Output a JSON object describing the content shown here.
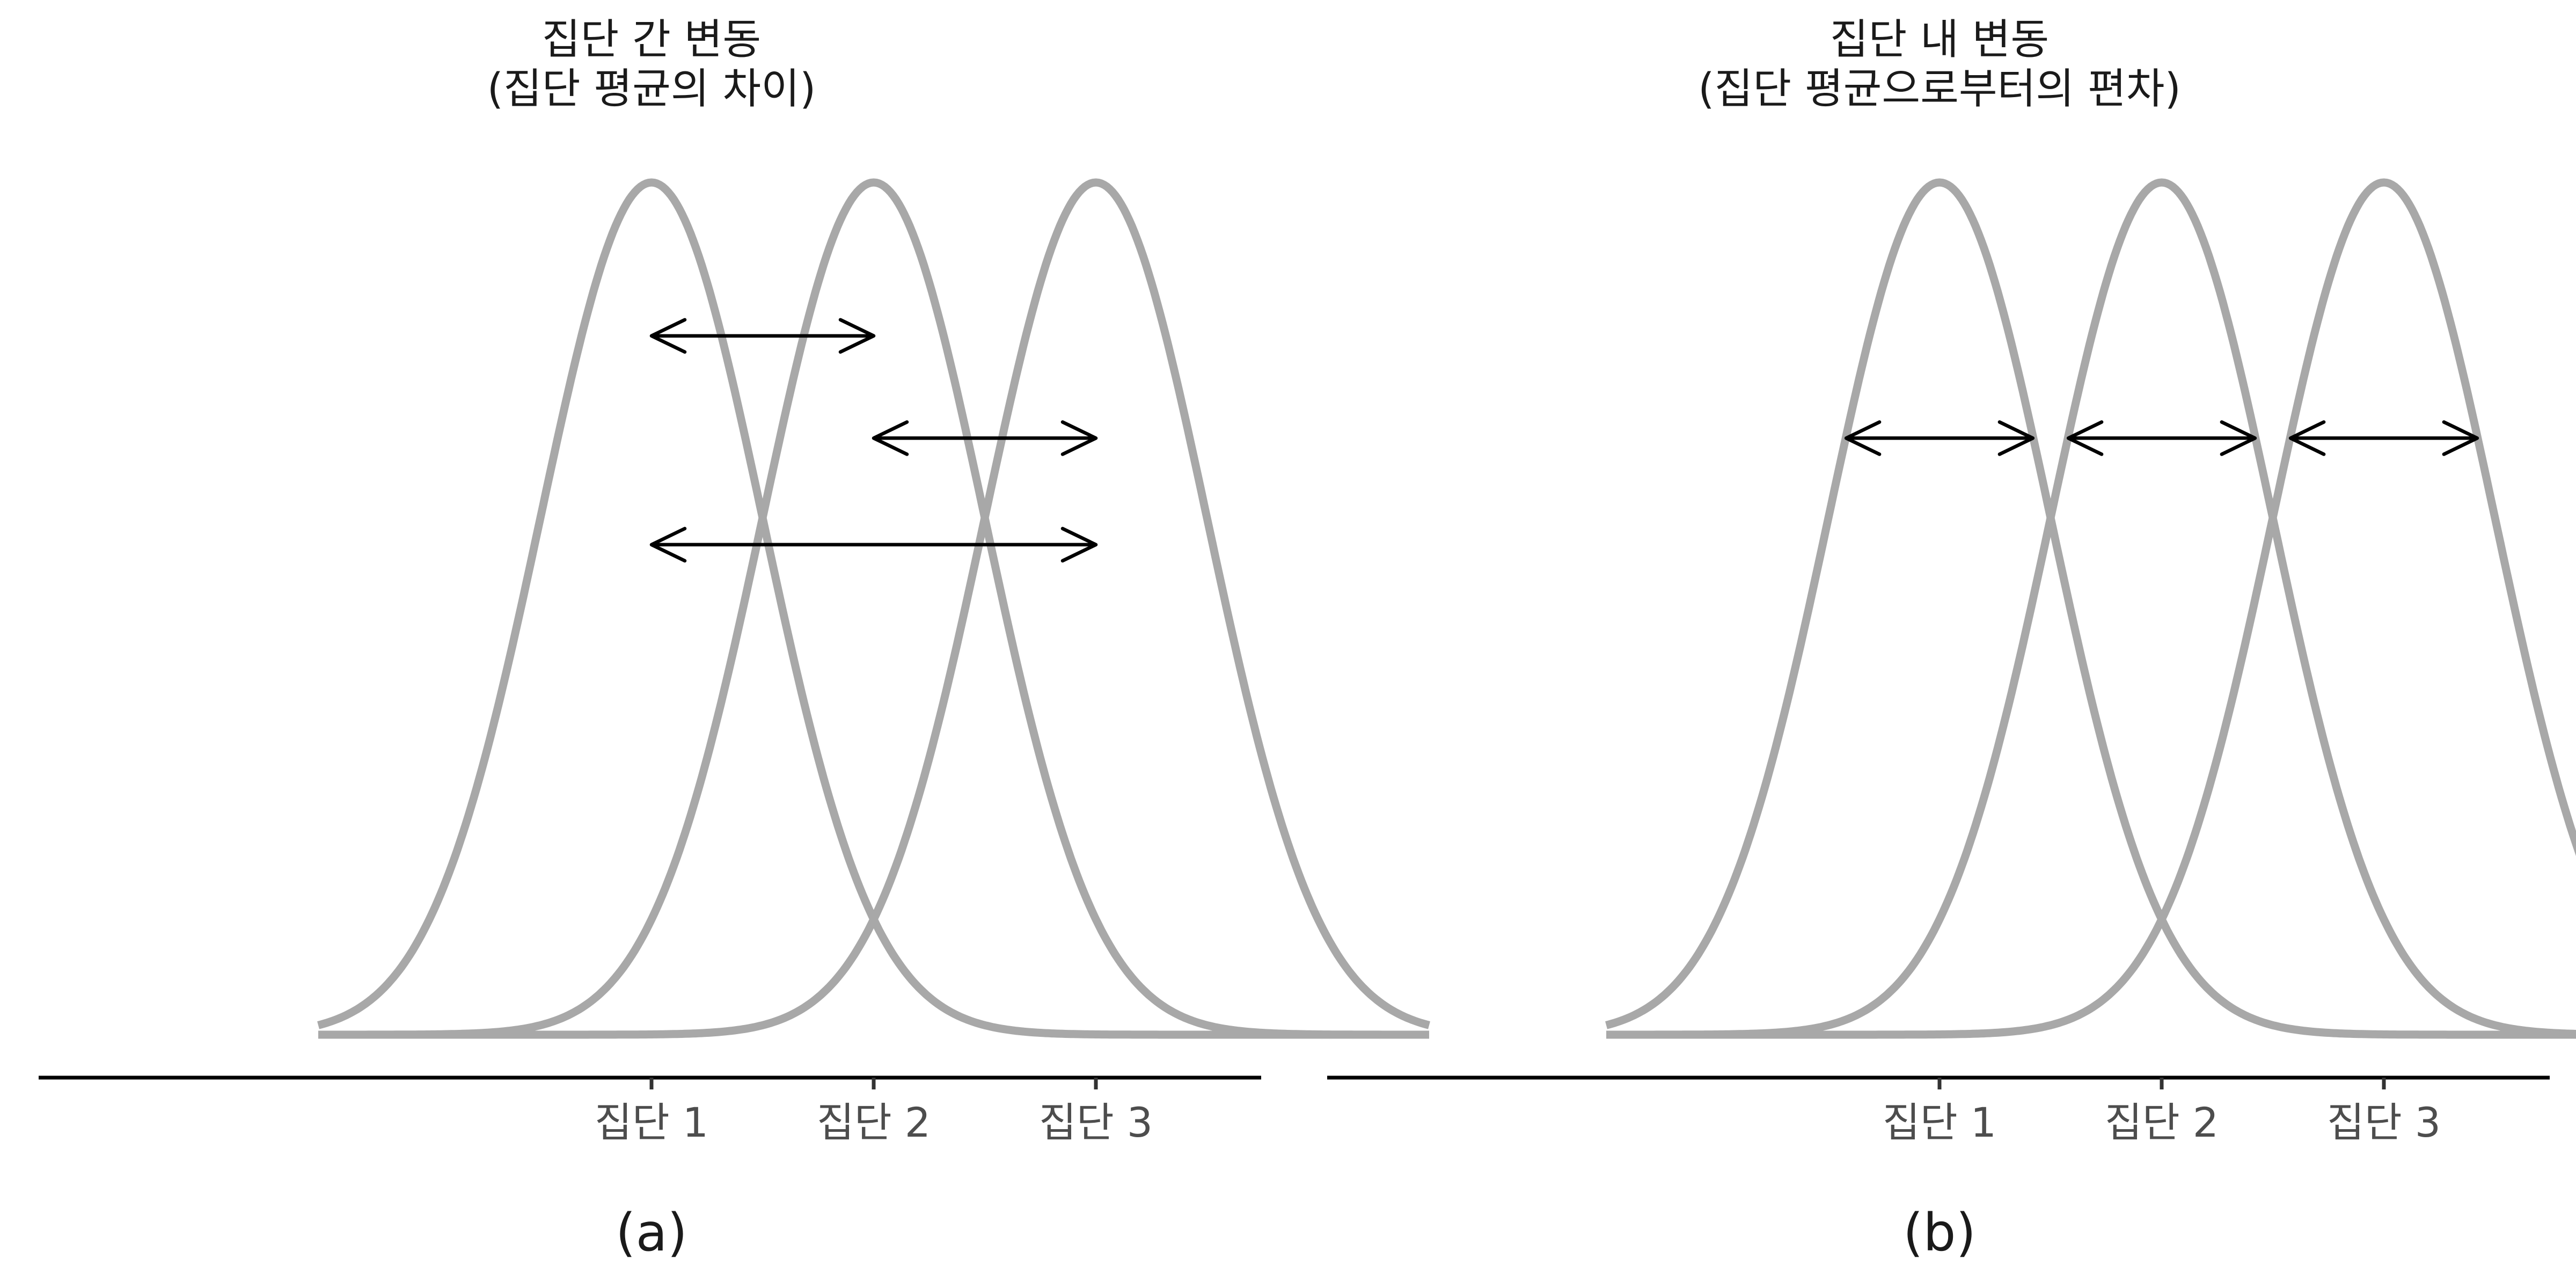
{
  "chart_data": [
    {
      "type": "line",
      "id": "between-groups",
      "title": "집단 간 변동",
      "subtitle": "(집단 평균의 차이)",
      "caption": "(a)",
      "categories": [
        "집단 1",
        "집단 2",
        "집단 3"
      ],
      "group_means": [
        1,
        2,
        3
      ],
      "group_sd": 0.5,
      "arrows": [
        {
          "from": 1,
          "to": 2,
          "level": 0.82
        },
        {
          "from": 2,
          "to": 3,
          "level": 0.7
        },
        {
          "from": 1,
          "to": 3,
          "level": 0.575
        }
      ]
    },
    {
      "type": "line",
      "id": "within-groups",
      "title": "집단 내 변동",
      "subtitle": "(집단 평균으로부터의 편차)",
      "caption": "(b)",
      "categories": [
        "집단 1",
        "집단 2",
        "집단 3"
      ],
      "group_means": [
        1,
        2,
        3
      ],
      "group_sd": 0.5,
      "arrows": [
        {
          "from": 0.58,
          "to": 1.42,
          "level": 0.7
        },
        {
          "from": 1.58,
          "to": 2.42,
          "level": 0.7
        },
        {
          "from": 2.58,
          "to": 3.42,
          "level": 0.7
        }
      ]
    }
  ],
  "colors": {
    "curve": "#a8a8a8",
    "arrow": "#000000",
    "axis": "#000000",
    "tick_label": "#4d4d4d"
  }
}
